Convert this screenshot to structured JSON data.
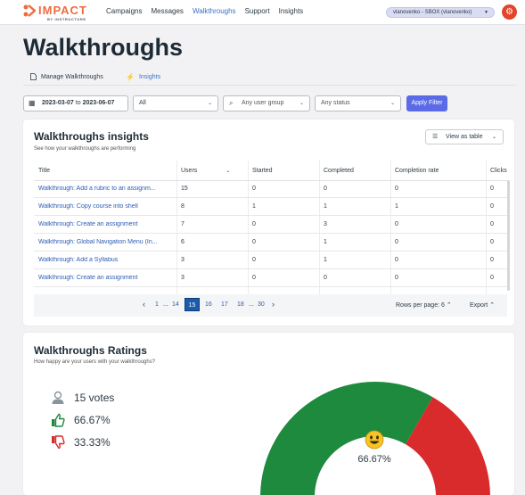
{
  "header": {
    "logo_text": "IMPACT",
    "logo_sub": "BY INSTRUCTURE",
    "nav": [
      {
        "label": "Campaigns",
        "active": false
      },
      {
        "label": "Messages",
        "active": false
      },
      {
        "label": "Walkthroughs",
        "active": true
      },
      {
        "label": "Support",
        "active": false
      },
      {
        "label": "Insights",
        "active": false
      }
    ],
    "org_select": "vlanovenko - SBOX (vlanovenko)",
    "settings_icon": "gear-icon"
  },
  "page_title": "Walkthroughs",
  "tabs": [
    {
      "label": "Manage Walkthroughs",
      "icon": "document-icon",
      "active": false
    },
    {
      "label": "Insights",
      "icon": "lightning-icon",
      "active": true
    }
  ],
  "filters": {
    "date_start": "2023-03-07",
    "date_to": "to",
    "date_end": "2023-06-07",
    "type_select": "All",
    "user_group_placeholder": "Any user group",
    "status_select": "Any status",
    "apply_label": "Apply Filter"
  },
  "insights": {
    "title": "Walkthroughs insights",
    "subtitle": "See how your walkthroughs are performing",
    "view_toggle": "View as table",
    "columns": [
      "Title",
      "Users",
      "Started",
      "Completed",
      "Completion rate",
      "Clicks"
    ],
    "rows": [
      {
        "title": "Walkthrough: Add a rubric to an assignm...",
        "users": "15",
        "started": "0",
        "completed": "0",
        "rate": "0",
        "clicks": "0"
      },
      {
        "title": "Walkthrough: Copy course into shell",
        "users": "8",
        "started": "1",
        "completed": "1",
        "rate": "1",
        "clicks": "0"
      },
      {
        "title": "Walkthrough: Create an assignment",
        "users": "7",
        "started": "0",
        "completed": "3",
        "rate": "0",
        "clicks": "0"
      },
      {
        "title": "Walkthrough: Global Navigation Menu (In...",
        "users": "6",
        "started": "0",
        "completed": "1",
        "rate": "0",
        "clicks": "0"
      },
      {
        "title": "Walkthrough: Add a Syllabus",
        "users": "3",
        "started": "0",
        "completed": "1",
        "rate": "0",
        "clicks": "0"
      },
      {
        "title": "Walkthrough: Create an assignment",
        "users": "3",
        "started": "0",
        "completed": "0",
        "rate": "0",
        "clicks": "0"
      }
    ],
    "pagination": {
      "first": "1",
      "ellipsis": "...",
      "pages": [
        "14",
        "15",
        "16",
        "17",
        "18"
      ],
      "current": "15",
      "last": "30"
    },
    "rows_per_page": "Rows per page: 6",
    "export_label": "Export"
  },
  "ratings": {
    "title": "Walkthroughs Ratings",
    "subtitle": "How happy are your users with your walkthroughs?",
    "votes": "15 votes",
    "positive": "66.67%",
    "negative": "33.33%",
    "gauge_value": "66.67%",
    "gauge_fraction_positive": 0.6667,
    "colors": {
      "positive": "#1e8a3e",
      "negative": "#d92b2b"
    }
  }
}
